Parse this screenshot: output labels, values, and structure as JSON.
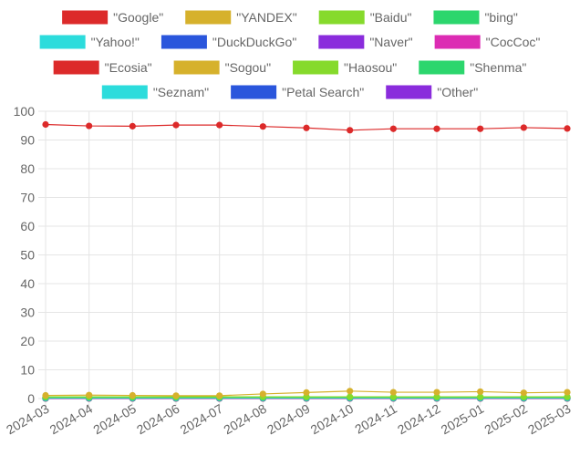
{
  "chart_data": {
    "type": "line",
    "title": "",
    "xlabel": "",
    "ylabel": "",
    "ylim": [
      0,
      100
    ],
    "yticks": [
      0,
      10,
      20,
      30,
      40,
      50,
      60,
      70,
      80,
      90,
      100
    ],
    "legend_position": "top",
    "grid": true,
    "categories": [
      "2024-03",
      "2024-04",
      "2024-05",
      "2024-06",
      "2024-07",
      "2024-08",
      "2024-09",
      "2024-10",
      "2024-11",
      "2024-12",
      "2025-01",
      "2025-02",
      "2025-03"
    ],
    "series": [
      {
        "name": "\"Google\"",
        "color": "#dc2a2a",
        "values": [
          95.4,
          94.9,
          94.8,
          95.2,
          95.2,
          94.7,
          94.2,
          93.4,
          93.9,
          93.9,
          93.9,
          94.3,
          94.0
        ]
      },
      {
        "name": "\"YANDEX\"",
        "color": "#d6b12c",
        "values": [
          1.1,
          1.2,
          1.1,
          1.0,
          1.0,
          1.6,
          2.1,
          2.6,
          2.2,
          2.2,
          2.4,
          2.0,
          2.2
        ]
      },
      {
        "name": "\"Baidu\"",
        "color": "#86da2c",
        "values": [
          0.6,
          0.6,
          0.6,
          0.6,
          0.6,
          0.6,
          0.6,
          0.6,
          0.6,
          0.6,
          0.6,
          0.6,
          0.6
        ]
      },
      {
        "name": "\"bing\"",
        "color": "#2cd66d",
        "values": [
          0.4,
          0.4,
          0.4,
          0.4,
          0.4,
          0.4,
          0.4,
          0.4,
          0.4,
          0.4,
          0.4,
          0.4,
          0.4
        ]
      },
      {
        "name": "\"Yahoo!\"",
        "color": "#2cdcdc",
        "values": [
          0.2,
          0.2,
          0.2,
          0.2,
          0.2,
          0.2,
          0.2,
          0.2,
          0.2,
          0.2,
          0.2,
          0.2,
          0.2
        ]
      },
      {
        "name": "\"DuckDuckGo\"",
        "color": "#2a56dc",
        "values": [
          0.2,
          0.2,
          0.2,
          0.2,
          0.2,
          0.2,
          0.2,
          0.2,
          0.2,
          0.2,
          0.2,
          0.2,
          0.2
        ]
      },
      {
        "name": "\"Naver\"",
        "color": "#8a2cdc",
        "values": [
          0.1,
          0.1,
          0.1,
          0.1,
          0.1,
          0.1,
          0.1,
          0.1,
          0.1,
          0.1,
          0.1,
          0.1,
          0.1
        ]
      },
      {
        "name": "\"CocCoc\"",
        "color": "#dc2cb3",
        "values": [
          0.1,
          0.1,
          0.1,
          0.1,
          0.1,
          0.1,
          0.1,
          0.1,
          0.1,
          0.1,
          0.1,
          0.1,
          0.1
        ]
      },
      {
        "name": "\"Ecosia\"",
        "color": "#dc2a2a",
        "values": [
          0.1,
          0.1,
          0.1,
          0.1,
          0.1,
          0.1,
          0.1,
          0.1,
          0.1,
          0.1,
          0.1,
          0.1,
          0.1
        ]
      },
      {
        "name": "\"Sogou\"",
        "color": "#d6b12c",
        "values": [
          0.05,
          0.05,
          0.05,
          0.05,
          0.05,
          0.05,
          0.05,
          0.05,
          0.05,
          0.05,
          0.05,
          0.05,
          0.05
        ]
      },
      {
        "name": "\"Haosou\"",
        "color": "#86da2c",
        "values": [
          0.05,
          0.05,
          0.05,
          0.05,
          0.05,
          0.05,
          0.05,
          0.05,
          0.05,
          0.05,
          0.05,
          0.05,
          0.05
        ]
      },
      {
        "name": "\"Shenma\"",
        "color": "#2cd66d",
        "values": [
          0.02,
          0.02,
          0.02,
          0.02,
          0.02,
          0.02,
          0.02,
          0.02,
          0.02,
          0.02,
          0.02,
          0.02,
          0.02
        ]
      },
      {
        "name": "\"Seznam\"",
        "color": "#2cdcdc",
        "values": [
          0.02,
          0.02,
          0.02,
          0.02,
          0.02,
          0.02,
          0.02,
          0.02,
          0.02,
          0.02,
          0.02,
          0.02,
          0.02
        ]
      },
      {
        "name": "\"Petal Search\"",
        "color": "#2a56dc",
        "values": [
          0.01,
          0.01,
          0.01,
          0.01,
          0.01,
          0.01,
          0.01,
          0.01,
          0.01,
          0.01,
          0.01,
          0.01,
          0.01
        ]
      },
      {
        "name": "\"Other\"",
        "color": "#8a2cdc",
        "values": [
          0.3,
          0.3,
          0.3,
          0.3,
          0.3,
          0.3,
          0.3,
          0.3,
          0.3,
          0.3,
          0.3,
          0.3,
          0.3
        ]
      }
    ]
  }
}
